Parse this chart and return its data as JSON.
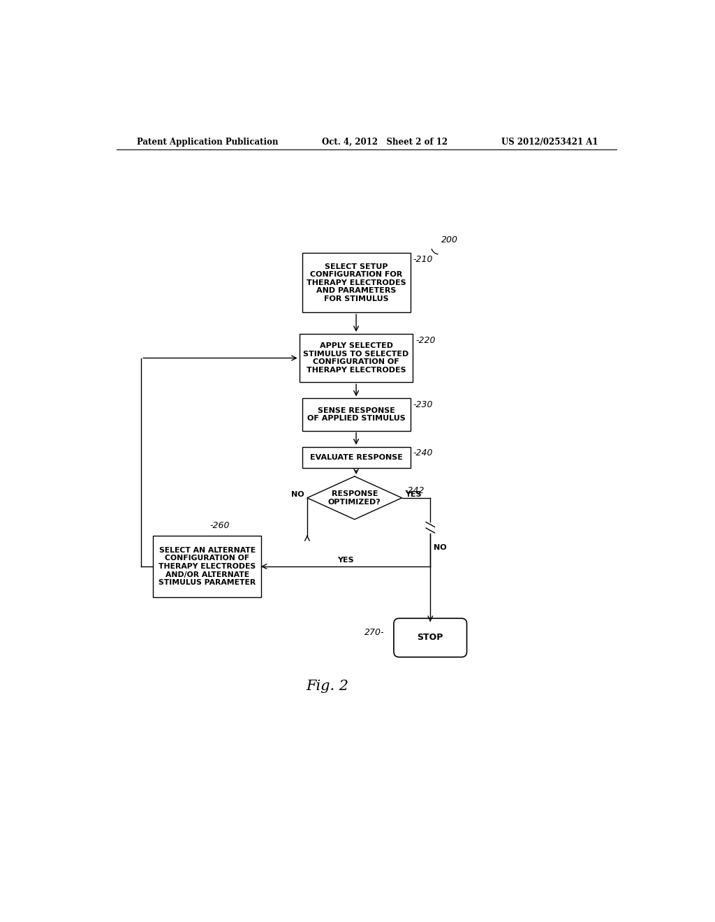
{
  "bg_color": "#ffffff",
  "header_left": "Patent Application Publication",
  "header_mid": "Oct. 4, 2012   Sheet 2 of 12",
  "header_right": "US 2012/0253421 A1",
  "fig_label": "Fig. 2",
  "label_200": "200",
  "label_210": "-210",
  "label_220": "-220",
  "label_230": "-230",
  "label_240": "-240",
  "label_242": "-242",
  "label_260": "-260",
  "label_270": "270-",
  "box210_text": "SELECT SETUP\nCONFIGURATION FOR\nTHERAPY ELECTRODES\nAND PARAMETERS\nFOR STIMULUS",
  "box220_text": "APPLY SELECTED\nSTIMULUS TO SELECTED\nCONFIGURATION OF\nTHERAPY ELECTRODES",
  "box230_text": "SENSE RESPONSE\nOF APPLIED STIMULUS",
  "box240_text": "EVALUATE RESPONSE",
  "diamond242_text": "RESPONSE\nOPTIMIZED?",
  "box260_text": "SELECT AN ALTERNATE\nCONFIGURATION OF\nTHERAPY ELECTRODES\nAND/OR ALTERNATE\nSTIMULUS PARAMETER",
  "stop_text": "STOP",
  "yes_right": "YES",
  "no_left": "NO",
  "yes_horiz": "YES",
  "no_below": "NO"
}
